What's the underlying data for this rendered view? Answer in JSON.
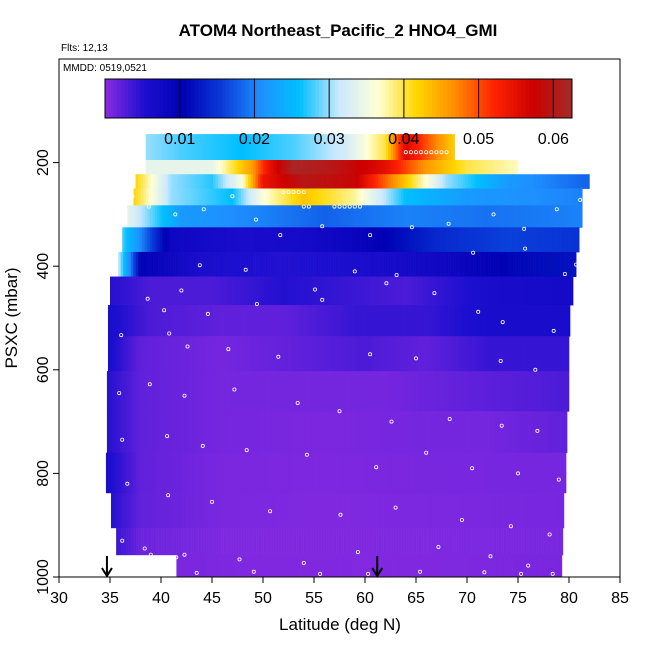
{
  "chart_data": {
    "type": "heatmap",
    "title": "ATOM4 Northeast_Pacific_2 HNO4_GMI",
    "annotations": [
      "Flts: 12,13",
      "MMDD: 0519,0521"
    ],
    "xlabel": "Latitude (deg N)",
    "ylabel": "PSXC (mbar)",
    "xlim": [
      30,
      85
    ],
    "ylim": [
      1000,
      0
    ],
    "x_ticks": [
      30,
      35,
      40,
      45,
      50,
      55,
      60,
      65,
      70,
      75,
      80,
      85
    ],
    "y_ticks": [
      200,
      400,
      600,
      800,
      1000
    ],
    "colorbar": {
      "range": [
        0,
        0.0625
      ],
      "ticks": [
        0.01,
        0.02,
        0.03,
        0.04,
        0.05,
        0.06
      ],
      "tick_labels": [
        "0.01",
        "0.02",
        "0.03",
        "0.04",
        "0.05",
        "0.06"
      ],
      "colors": [
        "#8a2be2",
        "#1e0fd0",
        "#0000b4",
        "#0a3ad8",
        "#1e90ff",
        "#00bfff",
        "#c9e8ff",
        "#ffffd8",
        "#ffd700",
        "#ff8c00",
        "#ff2200",
        "#cc0000",
        "#a52a2a"
      ]
    },
    "arrows_latitude": [
      34.7,
      61.2
    ],
    "rows": [
      {
        "p": 180,
        "lat_start": 38.5,
        "lat_end": 68.8,
        "values": [
          [
            38.5,
            0.03
          ],
          [
            42,
            0.028
          ],
          [
            48,
            0.026
          ],
          [
            53,
            0.028
          ],
          [
            58,
            0.032
          ],
          [
            62,
            0.04
          ],
          [
            64,
            0.056
          ],
          [
            66,
            0.05
          ],
          [
            68.8,
            0.042
          ]
        ]
      },
      {
        "p": 210,
        "lat_start": 38.5,
        "lat_end": 75.0,
        "values": [
          [
            38.5,
            0.034
          ],
          [
            45,
            0.034
          ],
          [
            49,
            0.046
          ],
          [
            50.5,
            0.054
          ],
          [
            53,
            0.062
          ],
          [
            57,
            0.06
          ],
          [
            62,
            0.055
          ],
          [
            66,
            0.046
          ],
          [
            70,
            0.04
          ],
          [
            75,
            0.037
          ]
        ]
      },
      {
        "p": 235,
        "lat_start": 37.5,
        "lat_end": 82.0,
        "values": [
          [
            37.5,
            0.042
          ],
          [
            41,
            0.03
          ],
          [
            45,
            0.027
          ],
          [
            48,
            0.036
          ],
          [
            50,
            0.054
          ],
          [
            54,
            0.06
          ],
          [
            59,
            0.058
          ],
          [
            63,
            0.046
          ],
          [
            68,
            0.03
          ],
          [
            74,
            0.022
          ],
          [
            82,
            0.018
          ]
        ]
      },
      {
        "p": 265,
        "lat_start": 37.3,
        "lat_end": 81.3,
        "values": [
          [
            37.3,
            0.042
          ],
          [
            41,
            0.03
          ],
          [
            47,
            0.026
          ],
          [
            50,
            0.036
          ],
          [
            54,
            0.043
          ],
          [
            59,
            0.038
          ],
          [
            64,
            0.026
          ],
          [
            70,
            0.022
          ],
          [
            81.3,
            0.02
          ]
        ]
      },
      {
        "p": 300,
        "lat_start": 36.7,
        "lat_end": 81.3,
        "values": [
          [
            36.7,
            0.034
          ],
          [
            42,
            0.022
          ],
          [
            50,
            0.02
          ],
          [
            56,
            0.018
          ],
          [
            64,
            0.02
          ],
          [
            72,
            0.019
          ],
          [
            81.3,
            0.02
          ]
        ]
      },
      {
        "p": 350,
        "lat_start": 36.2,
        "lat_end": 81.0,
        "values": [
          [
            36.2,
            0.028
          ],
          [
            41,
            0.008
          ],
          [
            48,
            0.006
          ],
          [
            55,
            0.007
          ],
          [
            60,
            0.009
          ],
          [
            67,
            0.014
          ],
          [
            74,
            0.016
          ],
          [
            81.0,
            0.015
          ]
        ]
      },
      {
        "p": 395,
        "lat_start": 35.8,
        "lat_end": 80.7,
        "values": [
          [
            35.8,
            0.032
          ],
          [
            38,
            0.01
          ],
          [
            44,
            0.006
          ],
          [
            52,
            0.005
          ],
          [
            60,
            0.006
          ],
          [
            68,
            0.008
          ],
          [
            75,
            0.011
          ],
          [
            80.7,
            0.012
          ]
        ]
      },
      {
        "p": 445,
        "lat_start": 35.0,
        "lat_end": 80.4,
        "values": [
          [
            35,
            0.005
          ],
          [
            39,
            0.003
          ],
          [
            45,
            0.003
          ],
          [
            52,
            0.005
          ],
          [
            58,
            0.004
          ],
          [
            64,
            0.003
          ],
          [
            72,
            0.006
          ],
          [
            80.4,
            0.007
          ]
        ]
      },
      {
        "p": 505,
        "lat_start": 34.8,
        "lat_end": 80.1,
        "values": [
          [
            34.8,
            0.006
          ],
          [
            39,
            0.003
          ],
          [
            46,
            0.002
          ],
          [
            52,
            0.002
          ],
          [
            59,
            0.004
          ],
          [
            66,
            0.004
          ],
          [
            72,
            0.006
          ],
          [
            80.1,
            0.006
          ]
        ]
      },
      {
        "p": 565,
        "lat_start": 34.8,
        "lat_end": 80.0,
        "values": [
          [
            34.8,
            0.006
          ],
          [
            38,
            0.002
          ],
          [
            46,
            0.001
          ],
          [
            53,
            0.002
          ],
          [
            60,
            0.003
          ],
          [
            66,
            0.002
          ],
          [
            72,
            0.004
          ],
          [
            80,
            0.004
          ]
        ]
      },
      {
        "p": 640,
        "lat_start": 34.7,
        "lat_end": 80.0,
        "values": [
          [
            34.7,
            0.005
          ],
          [
            38,
            0.002
          ],
          [
            46,
            0.001
          ],
          [
            55,
            0.001
          ],
          [
            62,
            0.001
          ],
          [
            70,
            0.002
          ],
          [
            80,
            0.003
          ]
        ]
      },
      {
        "p": 720,
        "lat_start": 34.7,
        "lat_end": 79.8,
        "values": [
          [
            34.7,
            0.005
          ],
          [
            38,
            0.002
          ],
          [
            46,
            0.001
          ],
          [
            56,
            0.0007
          ],
          [
            65,
            0.001
          ],
          [
            72,
            0.001
          ],
          [
            79.8,
            0.002
          ]
        ]
      },
      {
        "p": 800,
        "lat_start": 34.6,
        "lat_end": 79.7,
        "values": [
          [
            34.6,
            0.006
          ],
          [
            38,
            0.002
          ],
          [
            46,
            0.0008
          ],
          [
            55,
            0.0006
          ],
          [
            65,
            0.0008
          ],
          [
            79.7,
            0.001
          ]
        ]
      },
      {
        "p": 875,
        "lat_start": 35.1,
        "lat_end": 79.5,
        "values": [
          [
            35.1,
            0.005
          ],
          [
            38,
            0.002
          ],
          [
            46,
            0.0008
          ],
          [
            56,
            0.0005
          ],
          [
            66,
            0.0007
          ],
          [
            79.5,
            0.0009
          ]
        ]
      },
      {
        "p": 935,
        "lat_start": 35.6,
        "lat_end": 79.4,
        "values": [
          [
            35.6,
            0.004
          ],
          [
            38,
            0.0015
          ],
          [
            46,
            0.0006
          ],
          [
            56,
            0.0005
          ],
          [
            66,
            0.0006
          ],
          [
            79.4,
            0.0008
          ]
        ]
      },
      {
        "p": 980,
        "lat_start": 41.5,
        "lat_end": 79.3,
        "values": [
          [
            41.5,
            0.0008
          ],
          [
            50,
            0.0005
          ],
          [
            60,
            0.0004
          ],
          [
            70,
            0.0006
          ],
          [
            79.3,
            0.0008
          ]
        ]
      }
    ],
    "obs_points": [
      [
        64.0,
        180
      ],
      [
        64.5,
        180
      ],
      [
        65.0,
        180
      ],
      [
        65.5,
        180
      ],
      [
        66.0,
        180
      ],
      [
        66.5,
        180
      ],
      [
        67.0,
        180
      ],
      [
        67.5,
        180
      ],
      [
        68.0,
        180
      ],
      [
        52.0,
        257
      ],
      [
        52.5,
        257
      ],
      [
        53.0,
        257
      ],
      [
        53.5,
        257
      ],
      [
        54.0,
        257
      ],
      [
        54.0,
        285
      ],
      [
        54.5,
        285
      ],
      [
        57.0,
        285
      ],
      [
        57.5,
        285
      ],
      [
        58.0,
        285
      ],
      [
        58.5,
        285
      ],
      [
        59.0,
        285
      ],
      [
        59.5,
        285
      ],
      [
        37.2,
        265
      ],
      [
        38.8,
        285
      ],
      [
        41.4,
        300
      ],
      [
        44.2,
        290
      ],
      [
        47.0,
        265
      ],
      [
        49.3,
        310
      ],
      [
        51.7,
        340
      ],
      [
        55.8,
        323
      ],
      [
        60.5,
        340
      ],
      [
        64.6,
        325
      ],
      [
        68.2,
        318
      ],
      [
        72.6,
        300
      ],
      [
        75.6,
        328
      ],
      [
        78.8,
        290
      ],
      [
        81.1,
        272
      ],
      [
        80.7,
        397
      ],
      [
        43.8,
        398
      ],
      [
        48.3,
        407
      ],
      [
        55.1,
        445
      ],
      [
        59.0,
        410
      ],
      [
        63.1,
        417
      ],
      [
        70.6,
        374
      ],
      [
        75.7,
        366
      ],
      [
        79.6,
        415
      ],
      [
        38.7,
        463
      ],
      [
        40.3,
        485
      ],
      [
        42.0,
        447
      ],
      [
        44.6,
        492
      ],
      [
        49.4,
        473
      ],
      [
        55.8,
        465
      ],
      [
        62.1,
        433
      ],
      [
        66.8,
        452
      ],
      [
        71.1,
        488
      ],
      [
        73.5,
        508
      ],
      [
        78.5,
        525
      ],
      [
        36.1,
        533
      ],
      [
        40.8,
        530
      ],
      [
        42.6,
        555
      ],
      [
        46.6,
        560
      ],
      [
        51.5,
        575
      ],
      [
        60.5,
        570
      ],
      [
        65.0,
        578
      ],
      [
        73.3,
        583
      ],
      [
        76.7,
        600
      ],
      [
        35.9,
        645
      ],
      [
        38.9,
        628
      ],
      [
        42.3,
        650
      ],
      [
        47.2,
        638
      ],
      [
        53.4,
        664
      ],
      [
        57.5,
        680
      ],
      [
        62.6,
        700
      ],
      [
        68.3,
        695
      ],
      [
        73.4,
        708
      ],
      [
        76.9,
        718
      ],
      [
        36.2,
        735
      ],
      [
        40.6,
        728
      ],
      [
        44.1,
        747
      ],
      [
        48.4,
        755
      ],
      [
        54.3,
        764
      ],
      [
        61.1,
        788
      ],
      [
        66.0,
        760
      ],
      [
        70.5,
        790
      ],
      [
        75.0,
        800
      ],
      [
        79.0,
        812
      ],
      [
        36.7,
        820
      ],
      [
        40.7,
        842
      ],
      [
        45.0,
        855
      ],
      [
        50.7,
        873
      ],
      [
        57.6,
        880
      ],
      [
        63.0,
        866
      ],
      [
        69.5,
        890
      ],
      [
        74.3,
        902
      ],
      [
        78.1,
        918
      ],
      [
        36.2,
        930
      ],
      [
        38.4,
        945
      ],
      [
        42.3,
        957
      ],
      [
        47.7,
        966
      ],
      [
        54.0,
        973
      ],
      [
        59.3,
        952
      ],
      [
        67.2,
        942
      ],
      [
        72.3,
        960
      ],
      [
        76.0,
        978
      ],
      [
        37.8,
        990
      ],
      [
        43.5,
        992
      ],
      [
        49.1,
        990
      ],
      [
        55.6,
        994
      ],
      [
        60.3,
        994
      ],
      [
        65.4,
        990
      ],
      [
        71.7,
        991
      ],
      [
        75.3,
        994
      ],
      [
        78.4,
        994
      ],
      [
        35.0,
        993
      ],
      [
        36.0,
        998
      ],
      [
        39.0,
        957
      ],
      [
        41.5,
        962
      ]
    ]
  }
}
